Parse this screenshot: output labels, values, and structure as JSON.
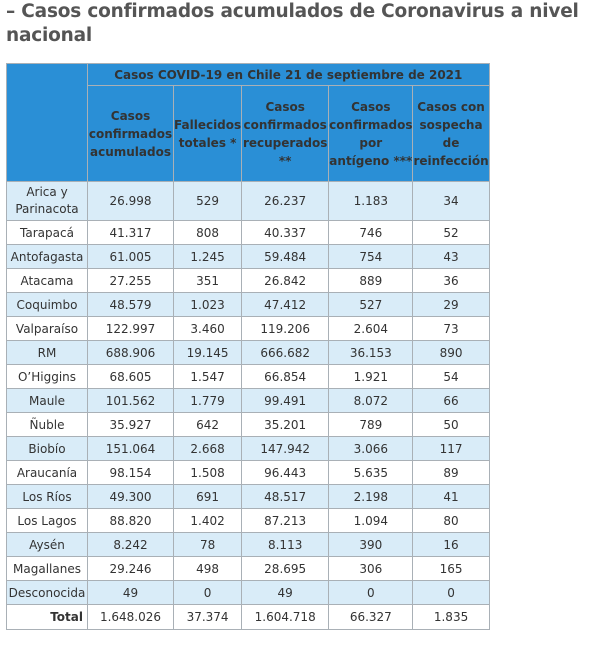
{
  "heading": "– Casos confirmados acumulados de Coronavirus a nivel nacional",
  "table": {
    "caption": "Casos COVID-19 en Chile 21 de septiembre de 2021",
    "headers": [
      "Casos confirmados acumulados",
      "Fallecidos totales *",
      "Casos confirmados recuperados **",
      "Casos confirmados por antígeno ***",
      "Casos con sospecha de reinfección"
    ],
    "rows": [
      {
        "region": "Arica y Parinacota",
        "cells": [
          "26.998",
          "529",
          "26.237",
          "1.183",
          "34"
        ]
      },
      {
        "region": "Tarapacá",
        "cells": [
          "41.317",
          "808",
          "40.337",
          "746",
          "52"
        ]
      },
      {
        "region": "Antofagasta",
        "cells": [
          "61.005",
          "1.245",
          "59.484",
          "754",
          "43"
        ]
      },
      {
        "region": "Atacama",
        "cells": [
          "27.255",
          "351",
          "26.842",
          "889",
          "36"
        ]
      },
      {
        "region": "Coquimbo",
        "cells": [
          "48.579",
          "1.023",
          "47.412",
          "527",
          "29"
        ]
      },
      {
        "region": "Valparaíso",
        "cells": [
          "122.997",
          "3.460",
          "119.206",
          "2.604",
          "73"
        ]
      },
      {
        "region": "RM",
        "cells": [
          "688.906",
          "19.145",
          "666.682",
          "36.153",
          "890"
        ]
      },
      {
        "region": "O’Higgins",
        "cells": [
          "68.605",
          "1.547",
          "66.854",
          "1.921",
          "54"
        ]
      },
      {
        "region": "Maule",
        "cells": [
          "101.562",
          "1.779",
          "99.491",
          "8.072",
          "66"
        ]
      },
      {
        "region": "Ñuble",
        "cells": [
          "35.927",
          "642",
          "35.201",
          "789",
          "50"
        ]
      },
      {
        "region": "Biobío",
        "cells": [
          "151.064",
          "2.668",
          "147.942",
          "3.066",
          "117"
        ]
      },
      {
        "region": "Araucanía",
        "cells": [
          "98.154",
          "1.508",
          "96.443",
          "5.635",
          "89"
        ]
      },
      {
        "region": "Los Ríos",
        "cells": [
          "49.300",
          "691",
          "48.517",
          "2.198",
          "41"
        ]
      },
      {
        "region": "Los Lagos",
        "cells": [
          "88.820",
          "1.402",
          "87.213",
          "1.094",
          "80"
        ]
      },
      {
        "region": "Aysén",
        "cells": [
          "8.242",
          "78",
          "8.113",
          "390",
          "16"
        ]
      },
      {
        "region": "Magallanes",
        "cells": [
          "29.246",
          "498",
          "28.695",
          "306",
          "165"
        ]
      },
      {
        "region": "Desconocida",
        "cells": [
          "49",
          "0",
          "49",
          "0",
          "0"
        ]
      }
    ],
    "total": {
      "region": "Total",
      "cells": [
        "1.648.026",
        "37.374",
        "1.604.718",
        "66.327",
        "1.835"
      ]
    }
  },
  "colors": {
    "header_blue": "#2a8fd6",
    "stripe_blue": "#d9ecf8",
    "heading_gray": "#555555"
  }
}
